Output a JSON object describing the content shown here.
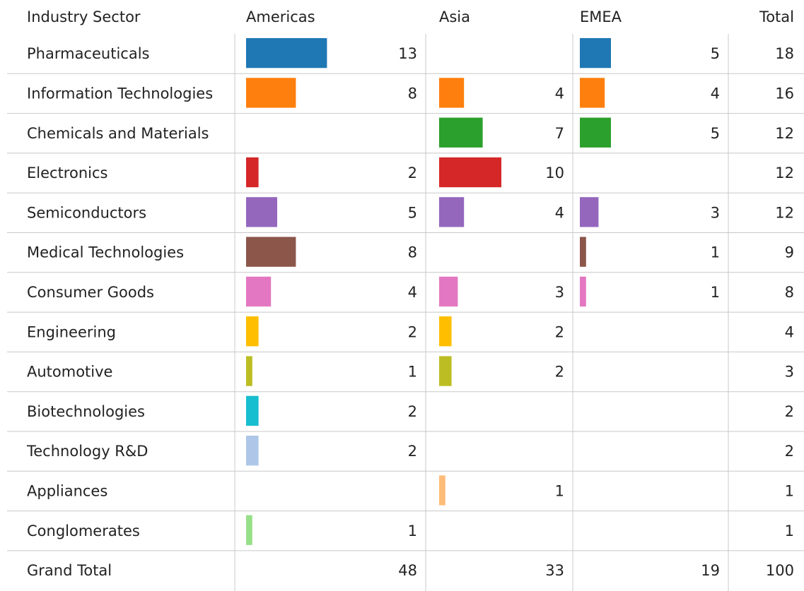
{
  "table": {
    "columns": [
      "Industry Sector",
      "Americas",
      "Asia",
      "EMEA",
      "Total"
    ],
    "rows": [
      {
        "label": "Pharmaceuticals",
        "color": "#1f77b4",
        "values": [
          13,
          null,
          5,
          18
        ]
      },
      {
        "label": "Information Technologies",
        "color": "#ff7f0e",
        "values": [
          8,
          4,
          4,
          16
        ]
      },
      {
        "label": "Chemicals and Materials",
        "color": "#2ca02c",
        "values": [
          null,
          7,
          5,
          12
        ]
      },
      {
        "label": "Electronics",
        "color": "#d62728",
        "values": [
          2,
          10,
          null,
          12
        ]
      },
      {
        "label": "Semiconductors",
        "color": "#9467bd",
        "values": [
          5,
          4,
          3,
          12
        ]
      },
      {
        "label": "Medical Technologies",
        "color": "#8c564b",
        "values": [
          8,
          null,
          1,
          9
        ]
      },
      {
        "label": "Consumer Goods",
        "color": "#e377c2",
        "values": [
          4,
          3,
          1,
          8
        ]
      },
      {
        "label": "Engineering",
        "color": "#ffbf00",
        "values": [
          2,
          2,
          null,
          4
        ]
      },
      {
        "label": "Automotive",
        "color": "#bcbd22",
        "values": [
          1,
          2,
          null,
          3
        ]
      },
      {
        "label": "Biotechnologies",
        "color": "#17becf",
        "values": [
          2,
          null,
          null,
          2
        ]
      },
      {
        "label": "Technology R&D",
        "color": "#aec7e8",
        "values": [
          2,
          null,
          null,
          2
        ]
      },
      {
        "label": "Appliances",
        "color": "#ffbb78",
        "values": [
          null,
          1,
          null,
          1
        ]
      },
      {
        "label": "Conglomerates",
        "color": "#98df8a",
        "values": [
          1,
          null,
          null,
          1
        ]
      }
    ],
    "total": {
      "label": "Grand Total",
      "values": [
        48,
        33,
        19,
        100
      ]
    }
  }
}
